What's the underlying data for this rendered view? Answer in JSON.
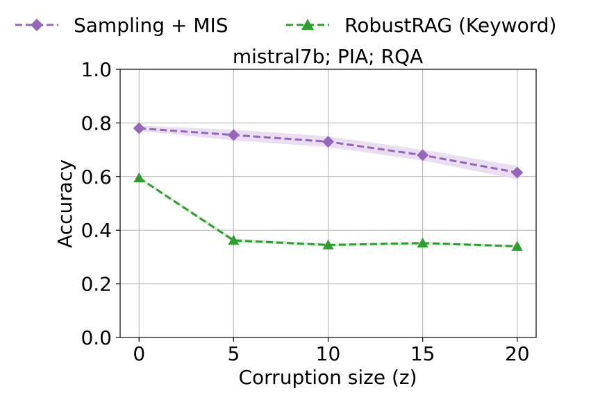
{
  "chart_data": {
    "type": "line",
    "title": "mistral7b; PIA; RQA",
    "xlabel": "Corruption size (z)",
    "ylabel": "Accuracy",
    "x": [
      0,
      5,
      10,
      15,
      20
    ],
    "xticks": [
      "0",
      "5",
      "10",
      "15",
      "20"
    ],
    "xlim": [
      -1,
      21
    ],
    "ylim": [
      0,
      1.0
    ],
    "yticks": [
      "0.0",
      "0.2",
      "0.4",
      "0.6",
      "0.8",
      "1.0"
    ],
    "grid": true,
    "legend_position": "top",
    "series": [
      {
        "name": "Sampling + MIS",
        "values": [
          0.78,
          0.755,
          0.73,
          0.68,
          0.615
        ],
        "band_low": [
          0.77,
          0.735,
          0.71,
          0.66,
          0.59
        ],
        "band_high": [
          0.79,
          0.775,
          0.75,
          0.7,
          0.64
        ],
        "color": "#9467bd",
        "band_color": "#e3d6ef",
        "marker": "diamond",
        "line_style": "dashed"
      },
      {
        "name": "RobustRAG (Keyword)",
        "values": [
          0.595,
          0.362,
          0.345,
          0.352,
          0.34
        ],
        "band_low": [
          0.59,
          0.355,
          0.34,
          0.347,
          0.335
        ],
        "band_high": [
          0.6,
          0.369,
          0.35,
          0.357,
          0.345
        ],
        "color": "#2ca02c",
        "band_color": "#c8e6c4",
        "marker": "triangle",
        "line_style": "dashed"
      }
    ]
  }
}
